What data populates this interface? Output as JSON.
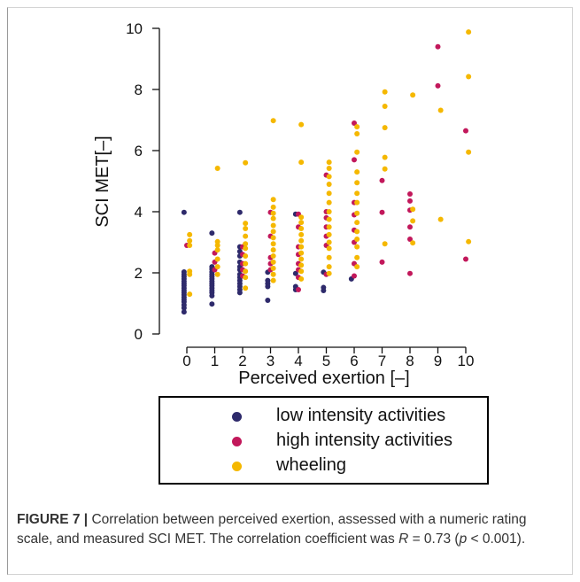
{
  "chart_data": {
    "type": "scatter",
    "xlabel": "Perceived exertion [–]",
    "ylabel": "SCI MET[–]",
    "xlim": [
      -0.6,
      10.5
    ],
    "ylim": [
      0,
      10
    ],
    "x_ticks": [
      "0",
      "1",
      "2",
      "3",
      "4",
      "5",
      "6",
      "7",
      "8",
      "9",
      "10"
    ],
    "y_ticks": [
      "0",
      "2",
      "4",
      "6",
      "8",
      "10"
    ],
    "grid": false,
    "legend": "bottom",
    "series": [
      {
        "name": "low intensity activities",
        "color": "#2e2a6b",
        "x_offset": -0.1,
        "points": [
          [
            0,
            0.72
          ],
          [
            0,
            0.85
          ],
          [
            0,
            0.95
          ],
          [
            0,
            1.05
          ],
          [
            0,
            1.12
          ],
          [
            0,
            1.2
          ],
          [
            0,
            1.28
          ],
          [
            0,
            1.35
          ],
          [
            0,
            1.42
          ],
          [
            0,
            1.5
          ],
          [
            0,
            1.58
          ],
          [
            0,
            1.65
          ],
          [
            0,
            1.72
          ],
          [
            0,
            1.8
          ],
          [
            0,
            1.88
          ],
          [
            0,
            1.95
          ],
          [
            0,
            2.03
          ],
          [
            0,
            3.98
          ],
          [
            1,
            0.98
          ],
          [
            1,
            1.25
          ],
          [
            1,
            1.35
          ],
          [
            1,
            1.42
          ],
          [
            1,
            1.5
          ],
          [
            1,
            1.58
          ],
          [
            1,
            1.65
          ],
          [
            1,
            1.72
          ],
          [
            1,
            1.8
          ],
          [
            1,
            1.88
          ],
          [
            1,
            1.95
          ],
          [
            1,
            2.03
          ],
          [
            1,
            2.12
          ],
          [
            1,
            2.2
          ],
          [
            1,
            3.3
          ],
          [
            2,
            1.35
          ],
          [
            2,
            1.45
          ],
          [
            2,
            1.55
          ],
          [
            2,
            1.65
          ],
          [
            2,
            1.75
          ],
          [
            2,
            1.85
          ],
          [
            2,
            1.95
          ],
          [
            2,
            2.1
          ],
          [
            2,
            2.2
          ],
          [
            2,
            2.35
          ],
          [
            2,
            2.55
          ],
          [
            2,
            2.7
          ],
          [
            2,
            2.85
          ],
          [
            2,
            3.98
          ],
          [
            3,
            1.1
          ],
          [
            3,
            1.55
          ],
          [
            3,
            1.65
          ],
          [
            3,
            1.75
          ],
          [
            3,
            2.02
          ],
          [
            4,
            1.45
          ],
          [
            4,
            1.55
          ],
          [
            4,
            1.98
          ],
          [
            4,
            3.92
          ],
          [
            5,
            1.42
          ],
          [
            5,
            1.52
          ],
          [
            5,
            2.02
          ],
          [
            6,
            1.8
          ]
        ]
      },
      {
        "name": "high intensity activities",
        "color": "#c2185b",
        "x_offset": 0,
        "points": [
          [
            0,
            2.9
          ],
          [
            1,
            2.1
          ],
          [
            1,
            2.35
          ],
          [
            1,
            2.65
          ],
          [
            2,
            1.9
          ],
          [
            2,
            2.1
          ],
          [
            2,
            2.3
          ],
          [
            2,
            2.6
          ],
          [
            2,
            2.85
          ],
          [
            3,
            2.1
          ],
          [
            3,
            2.3
          ],
          [
            3,
            2.5
          ],
          [
            3,
            3.2
          ],
          [
            3,
            3.98
          ],
          [
            4,
            1.45
          ],
          [
            4,
            1.85
          ],
          [
            4,
            2.1
          ],
          [
            4,
            2.3
          ],
          [
            4,
            2.6
          ],
          [
            4,
            2.85
          ],
          [
            4,
            3.5
          ],
          [
            4,
            3.92
          ],
          [
            5,
            1.95
          ],
          [
            5,
            2.9
          ],
          [
            5,
            3.2
          ],
          [
            5,
            3.5
          ],
          [
            5,
            3.8
          ],
          [
            5,
            4.0
          ],
          [
            5,
            5.2
          ],
          [
            6,
            1.9
          ],
          [
            6,
            2.3
          ],
          [
            6,
            3.0
          ],
          [
            6,
            3.4
          ],
          [
            6,
            3.9
          ],
          [
            6,
            4.3
          ],
          [
            6,
            5.7
          ],
          [
            6,
            6.9
          ],
          [
            7,
            2.35
          ],
          [
            7,
            3.98
          ],
          [
            7,
            5.02
          ],
          [
            8,
            1.98
          ],
          [
            8,
            3.1
          ],
          [
            8,
            3.5
          ],
          [
            8,
            4.05
          ],
          [
            8,
            4.35
          ],
          [
            8,
            4.58
          ],
          [
            9,
            8.12
          ],
          [
            9,
            9.4
          ],
          [
            10,
            2.45
          ],
          [
            10,
            6.65
          ]
        ]
      },
      {
        "name": "wheeling",
        "color": "#f5b800",
        "x_offset": 0.1,
        "points": [
          [
            0,
            1.3
          ],
          [
            0,
            1.95
          ],
          [
            0,
            2.05
          ],
          [
            0,
            2.9
          ],
          [
            0,
            3.05
          ],
          [
            0,
            3.25
          ],
          [
            1,
            1.95
          ],
          [
            1,
            2.2
          ],
          [
            1,
            2.45
          ],
          [
            1,
            2.75
          ],
          [
            1,
            2.9
          ],
          [
            1,
            3.02
          ],
          [
            1,
            5.42
          ],
          [
            2,
            1.5
          ],
          [
            2,
            1.85
          ],
          [
            2,
            2.05
          ],
          [
            2,
            2.3
          ],
          [
            2,
            2.55
          ],
          [
            2,
            2.8
          ],
          [
            2,
            2.95
          ],
          [
            2,
            3.2
          ],
          [
            2,
            3.45
          ],
          [
            2,
            3.62
          ],
          [
            2,
            5.6
          ],
          [
            3,
            1.75
          ],
          [
            3,
            1.95
          ],
          [
            3,
            2.15
          ],
          [
            3,
            2.35
          ],
          [
            3,
            2.55
          ],
          [
            3,
            2.75
          ],
          [
            3,
            2.95
          ],
          [
            3,
            3.15
          ],
          [
            3,
            3.35
          ],
          [
            3,
            3.55
          ],
          [
            3,
            3.78
          ],
          [
            3,
            3.95
          ],
          [
            3,
            4.15
          ],
          [
            3,
            4.4
          ],
          [
            3,
            6.98
          ],
          [
            4,
            1.8
          ],
          [
            4,
            2.05
          ],
          [
            4,
            2.25
          ],
          [
            4,
            2.45
          ],
          [
            4,
            2.65
          ],
          [
            4,
            2.85
          ],
          [
            4,
            3.05
          ],
          [
            4,
            3.25
          ],
          [
            4,
            3.45
          ],
          [
            4,
            3.65
          ],
          [
            4,
            3.82
          ],
          [
            4,
            5.62
          ],
          [
            4,
            6.85
          ],
          [
            5,
            1.98
          ],
          [
            5,
            2.2
          ],
          [
            5,
            2.5
          ],
          [
            5,
            2.8
          ],
          [
            5,
            3.0
          ],
          [
            5,
            3.25
          ],
          [
            5,
            3.5
          ],
          [
            5,
            3.75
          ],
          [
            5,
            4.0
          ],
          [
            5,
            4.3
          ],
          [
            5,
            4.6
          ],
          [
            5,
            4.9
          ],
          [
            5,
            5.15
          ],
          [
            5,
            5.42
          ],
          [
            5,
            5.62
          ],
          [
            6,
            2.2
          ],
          [
            6,
            2.5
          ],
          [
            6,
            2.85
          ],
          [
            6,
            3.1
          ],
          [
            6,
            3.35
          ],
          [
            6,
            3.65
          ],
          [
            6,
            3.95
          ],
          [
            6,
            4.3
          ],
          [
            6,
            4.6
          ],
          [
            6,
            4.95
          ],
          [
            6,
            5.3
          ],
          [
            6,
            5.95
          ],
          [
            6,
            6.55
          ],
          [
            6,
            6.78
          ],
          [
            7,
            2.95
          ],
          [
            7,
            5.4
          ],
          [
            7,
            5.78
          ],
          [
            7,
            6.75
          ],
          [
            7,
            7.45
          ],
          [
            7,
            7.92
          ],
          [
            8,
            2.98
          ],
          [
            8,
            3.7
          ],
          [
            8,
            4.08
          ],
          [
            8,
            7.82
          ],
          [
            9,
            3.75
          ],
          [
            9,
            7.32
          ],
          [
            10,
            3.02
          ],
          [
            10,
            5.95
          ],
          [
            10,
            8.42
          ],
          [
            10,
            9.88
          ]
        ]
      }
    ]
  },
  "legend": {
    "items": [
      {
        "label": "low intensity activities",
        "color": "#2e2a6b"
      },
      {
        "label": "high intensity activities",
        "color": "#c2185b"
      },
      {
        "label": "wheeling",
        "color": "#f5b800"
      }
    ]
  },
  "caption": {
    "label": "FIGURE 7 |",
    "text_1": " Correlation between perceived exertion, assessed with a numeric rating scale, and measured SCI MET. The correlation coefficient was ",
    "r_symbol": "R",
    "text_2": " = 0.73 (",
    "p_symbol": "p",
    "text_3": " < 0.001)."
  }
}
